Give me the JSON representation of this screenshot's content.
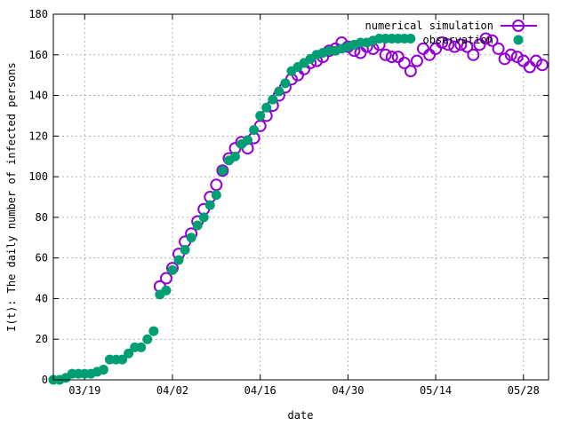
{
  "chart_data": {
    "type": "scatter",
    "title": "",
    "xlabel": "date",
    "ylabel": "I(t): The daily number of infected persons",
    "xlim": [
      "2020-03-14",
      "2020-06-01"
    ],
    "ylim": [
      0,
      180
    ],
    "xticks": [
      {
        "date": "2020-03-19",
        "label": "03/19"
      },
      {
        "date": "2020-04-02",
        "label": "04/02"
      },
      {
        "date": "2020-04-16",
        "label": "04/16"
      },
      {
        "date": "2020-04-30",
        "label": "04/30"
      },
      {
        "date": "2020-05-14",
        "label": "05/14"
      },
      {
        "date": "2020-05-28",
        "label": "05/28"
      }
    ],
    "yticks": [
      {
        "value": 0,
        "label": "0"
      },
      {
        "value": 20,
        "label": "20"
      },
      {
        "value": 40,
        "label": "40"
      },
      {
        "value": 60,
        "label": "60"
      },
      {
        "value": 80,
        "label": "80"
      },
      {
        "value": 100,
        "label": "100"
      },
      {
        "value": 120,
        "label": "120"
      },
      {
        "value": 140,
        "label": "140"
      },
      {
        "value": 160,
        "label": "160"
      },
      {
        "value": 180,
        "label": "180"
      }
    ],
    "grid": true,
    "legend_position": "top-right",
    "series": [
      {
        "name": "numerical simulation",
        "marker": "open circle",
        "color": "#9400d3",
        "x": [
          "2020-03-31",
          "2020-04-01",
          "2020-04-02",
          "2020-04-03",
          "2020-04-04",
          "2020-04-05",
          "2020-04-06",
          "2020-04-07",
          "2020-04-08",
          "2020-04-09",
          "2020-04-10",
          "2020-04-11",
          "2020-04-12",
          "2020-04-13",
          "2020-04-14",
          "2020-04-15",
          "2020-04-16",
          "2020-04-17",
          "2020-04-18",
          "2020-04-19",
          "2020-04-20",
          "2020-04-21",
          "2020-04-22",
          "2020-04-23",
          "2020-04-24",
          "2020-04-25",
          "2020-04-26",
          "2020-04-27",
          "2020-04-28",
          "2020-04-29",
          "2020-04-30",
          "2020-05-01",
          "2020-05-02",
          "2020-05-03",
          "2020-05-04",
          "2020-05-05",
          "2020-05-06",
          "2020-05-07",
          "2020-05-08",
          "2020-05-09",
          "2020-05-10",
          "2020-05-11",
          "2020-05-12",
          "2020-05-13",
          "2020-05-14",
          "2020-05-15",
          "2020-05-16",
          "2020-05-17",
          "2020-05-18",
          "2020-05-19",
          "2020-05-20",
          "2020-05-21",
          "2020-05-22",
          "2020-05-23",
          "2020-05-24",
          "2020-05-25",
          "2020-05-26",
          "2020-05-27",
          "2020-05-28",
          "2020-05-29",
          "2020-05-30",
          "2020-05-31"
        ],
        "y": [
          46,
          50,
          55,
          62,
          68,
          72,
          78,
          84,
          90,
          96,
          103,
          109,
          114,
          117,
          114,
          119,
          125,
          130,
          135,
          140,
          144,
          148,
          150,
          153,
          156,
          157,
          159,
          162,
          163,
          166,
          164,
          162,
          161,
          164,
          163,
          165,
          160,
          159,
          159,
          156,
          152,
          157,
          163,
          160,
          163,
          166,
          165,
          164,
          165,
          164,
          160,
          165,
          168,
          167,
          163,
          158,
          160,
          159,
          157,
          154,
          157,
          155
        ]
      },
      {
        "name": "observation",
        "marker": "filled circle",
        "color": "#009e73",
        "x": [
          "2020-03-14",
          "2020-03-15",
          "2020-03-16",
          "2020-03-17",
          "2020-03-18",
          "2020-03-19",
          "2020-03-20",
          "2020-03-21",
          "2020-03-22",
          "2020-03-23",
          "2020-03-24",
          "2020-03-25",
          "2020-03-26",
          "2020-03-27",
          "2020-03-28",
          "2020-03-29",
          "2020-03-30",
          "2020-03-31",
          "2020-04-01",
          "2020-04-02",
          "2020-04-03",
          "2020-04-04",
          "2020-04-05",
          "2020-04-06",
          "2020-04-07",
          "2020-04-08",
          "2020-04-09",
          "2020-04-10",
          "2020-04-11",
          "2020-04-12",
          "2020-04-13",
          "2020-04-14",
          "2020-04-15",
          "2020-04-16",
          "2020-04-17",
          "2020-04-18",
          "2020-04-19",
          "2020-04-20",
          "2020-04-21",
          "2020-04-22",
          "2020-04-23",
          "2020-04-24",
          "2020-04-25",
          "2020-04-26",
          "2020-04-27",
          "2020-04-28",
          "2020-04-29",
          "2020-04-30",
          "2020-05-01",
          "2020-05-02",
          "2020-05-03",
          "2020-05-04",
          "2020-05-05",
          "2020-05-06",
          "2020-05-07",
          "2020-05-08",
          "2020-05-09",
          "2020-05-10"
        ],
        "y": [
          0,
          0,
          1,
          3,
          3,
          3,
          3,
          4,
          5,
          10,
          10,
          10,
          13,
          16,
          16,
          20,
          24,
          42,
          44,
          54,
          59,
          64,
          70,
          76,
          80,
          86,
          91,
          103,
          108,
          110,
          116,
          118,
          123,
          130,
          134,
          138,
          142,
          146,
          152,
          154,
          156,
          158,
          160,
          161,
          162,
          162,
          163,
          164,
          165,
          166,
          166,
          167,
          168,
          168,
          168,
          168,
          168,
          168
        ]
      }
    ]
  }
}
